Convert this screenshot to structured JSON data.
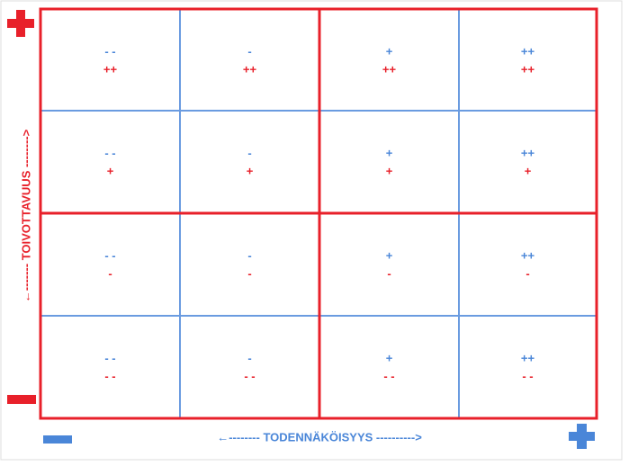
{
  "axes": {
    "y_label": "←------- TOIVOTTAVUUS -------->",
    "x_label": "←-------- TODENNÄKÖISYYS ---------->"
  },
  "grid": {
    "rows": [
      {
        "cells": [
          {
            "blue": "- -",
            "red": "++"
          },
          {
            "blue": "-",
            "red": "++"
          },
          {
            "blue": "+",
            "red": "++"
          },
          {
            "blue": "++",
            "red": "++"
          }
        ]
      },
      {
        "cells": [
          {
            "blue": "- -",
            "red": "+"
          },
          {
            "blue": "-",
            "red": "+"
          },
          {
            "blue": "+",
            "red": "+"
          },
          {
            "blue": "++",
            "red": "+"
          }
        ]
      },
      {
        "cells": [
          {
            "blue": "- -",
            "red": "-"
          },
          {
            "blue": "-",
            "red": "-"
          },
          {
            "blue": "+",
            "red": "-"
          },
          {
            "blue": "++",
            "red": "-"
          }
        ]
      },
      {
        "cells": [
          {
            "blue": "- -",
            "red": "- -"
          },
          {
            "blue": "-",
            "red": "- -"
          },
          {
            "blue": "+",
            "red": "- -"
          },
          {
            "blue": "++",
            "red": "- -"
          }
        ]
      }
    ]
  }
}
